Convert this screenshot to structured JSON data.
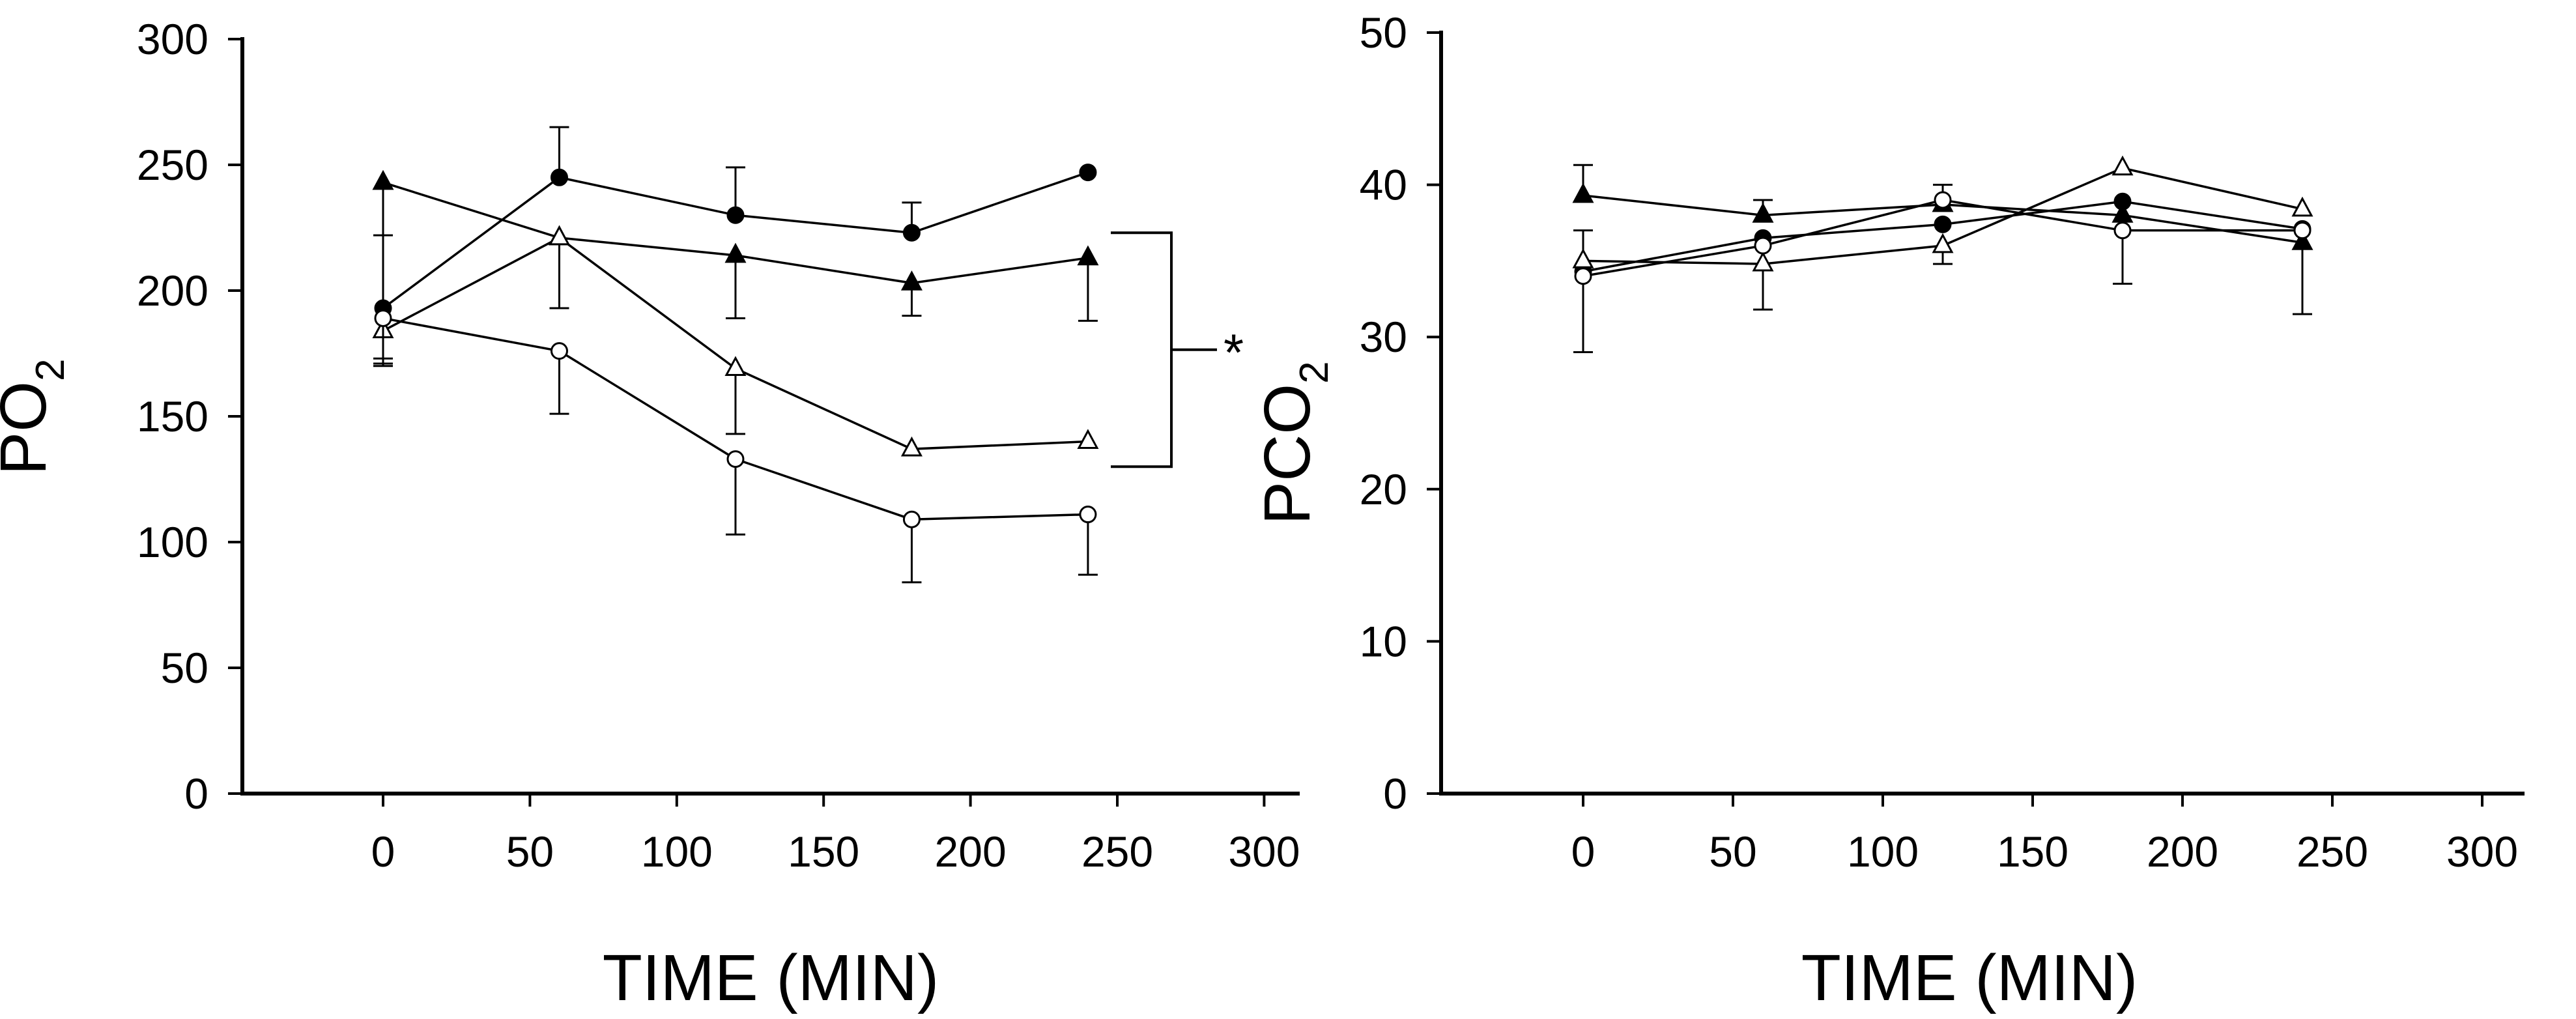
{
  "chart_data": [
    {
      "id": "po2",
      "type": "line",
      "title": "",
      "xlabel": "TIME (MIN)",
      "ylabel": "PO",
      "ylabel_sub": "2",
      "xlim": [
        -45,
        300
      ],
      "ylim": [
        0,
        300
      ],
      "xticks": [
        0,
        50,
        100,
        150,
        200,
        250,
        300
      ],
      "yticks": [
        0,
        50,
        100,
        150,
        200,
        250,
        300
      ],
      "x": [
        0,
        60,
        120,
        180,
        240
      ],
      "series": [
        {
          "name": "filled-circle",
          "marker": "circle",
          "fill": "#000000",
          "values": [
            193,
            245,
            230,
            223,
            247
          ],
          "err_up": [
            0,
            20,
            19,
            12,
            0
          ],
          "err_down": [
            0,
            0,
            0,
            0,
            0
          ]
        },
        {
          "name": "filled-triangle",
          "marker": "triangle",
          "fill": "#000000",
          "values": [
            243,
            221,
            214,
            203,
            213
          ],
          "err_up": [
            0,
            0,
            0,
            0,
            0
          ],
          "err_down": [
            70,
            0,
            25,
            13,
            25
          ]
        },
        {
          "name": "open-triangle",
          "marker": "triangle",
          "fill": "#ffffff",
          "values": [
            184,
            221,
            169,
            137,
            140
          ],
          "err_up": [
            38,
            0,
            0,
            0,
            0
          ],
          "err_down": [
            14,
            28,
            26,
            0,
            0
          ]
        },
        {
          "name": "open-circle",
          "marker": "circle",
          "fill": "#ffffff",
          "values": [
            189,
            176,
            133,
            109,
            111
          ],
          "err_up": [
            0,
            0,
            0,
            0,
            0
          ],
          "err_down": [
            18,
            25,
            30,
            25,
            24
          ]
        }
      ],
      "significance": {
        "label": "*",
        "x": 250,
        "y_top": 223,
        "y_bottom": 130
      }
    },
    {
      "id": "pco2",
      "type": "line",
      "title": "",
      "xlabel": "TIME (MIN)",
      "ylabel": "PCO",
      "ylabel_sub": "2",
      "xlim": [
        -45,
        300
      ],
      "ylim": [
        0,
        50
      ],
      "xticks": [
        0,
        50,
        100,
        150,
        200,
        250,
        300
      ],
      "yticks": [
        0,
        10,
        20,
        30,
        40,
        50
      ],
      "x": [
        0,
        60,
        120,
        180,
        240
      ],
      "series": [
        {
          "name": "filled-triangle",
          "marker": "triangle",
          "fill": "#000000",
          "values": [
            39.3,
            38.0,
            38.7,
            38.0,
            36.2
          ],
          "err_up": [
            2.0,
            1.0,
            0,
            0,
            0
          ],
          "err_down": [
            0,
            0,
            0,
            0,
            0
          ]
        },
        {
          "name": "filled-circle",
          "marker": "circle",
          "fill": "#000000",
          "values": [
            34.3,
            36.5,
            37.4,
            38.9,
            37.1
          ],
          "err_up": [
            0,
            0,
            0,
            0,
            0
          ],
          "err_down": [
            5.3,
            0,
            0,
            0,
            0
          ]
        },
        {
          "name": "open-triangle",
          "marker": "triangle",
          "fill": "#ffffff",
          "values": [
            35.0,
            34.8,
            36.0,
            41.1,
            38.4
          ],
          "err_up": [
            2.0,
            0,
            0,
            0,
            0
          ],
          "err_down": [
            0,
            3.0,
            1.2,
            0,
            0
          ]
        },
        {
          "name": "open-circle",
          "marker": "circle",
          "fill": "#ffffff",
          "values": [
            34.0,
            36.0,
            39.0,
            37.0,
            37.0
          ],
          "err_up": [
            0,
            0,
            1.0,
            0,
            0
          ],
          "err_down": [
            0,
            0,
            0,
            3.5,
            5.5
          ]
        }
      ]
    }
  ]
}
